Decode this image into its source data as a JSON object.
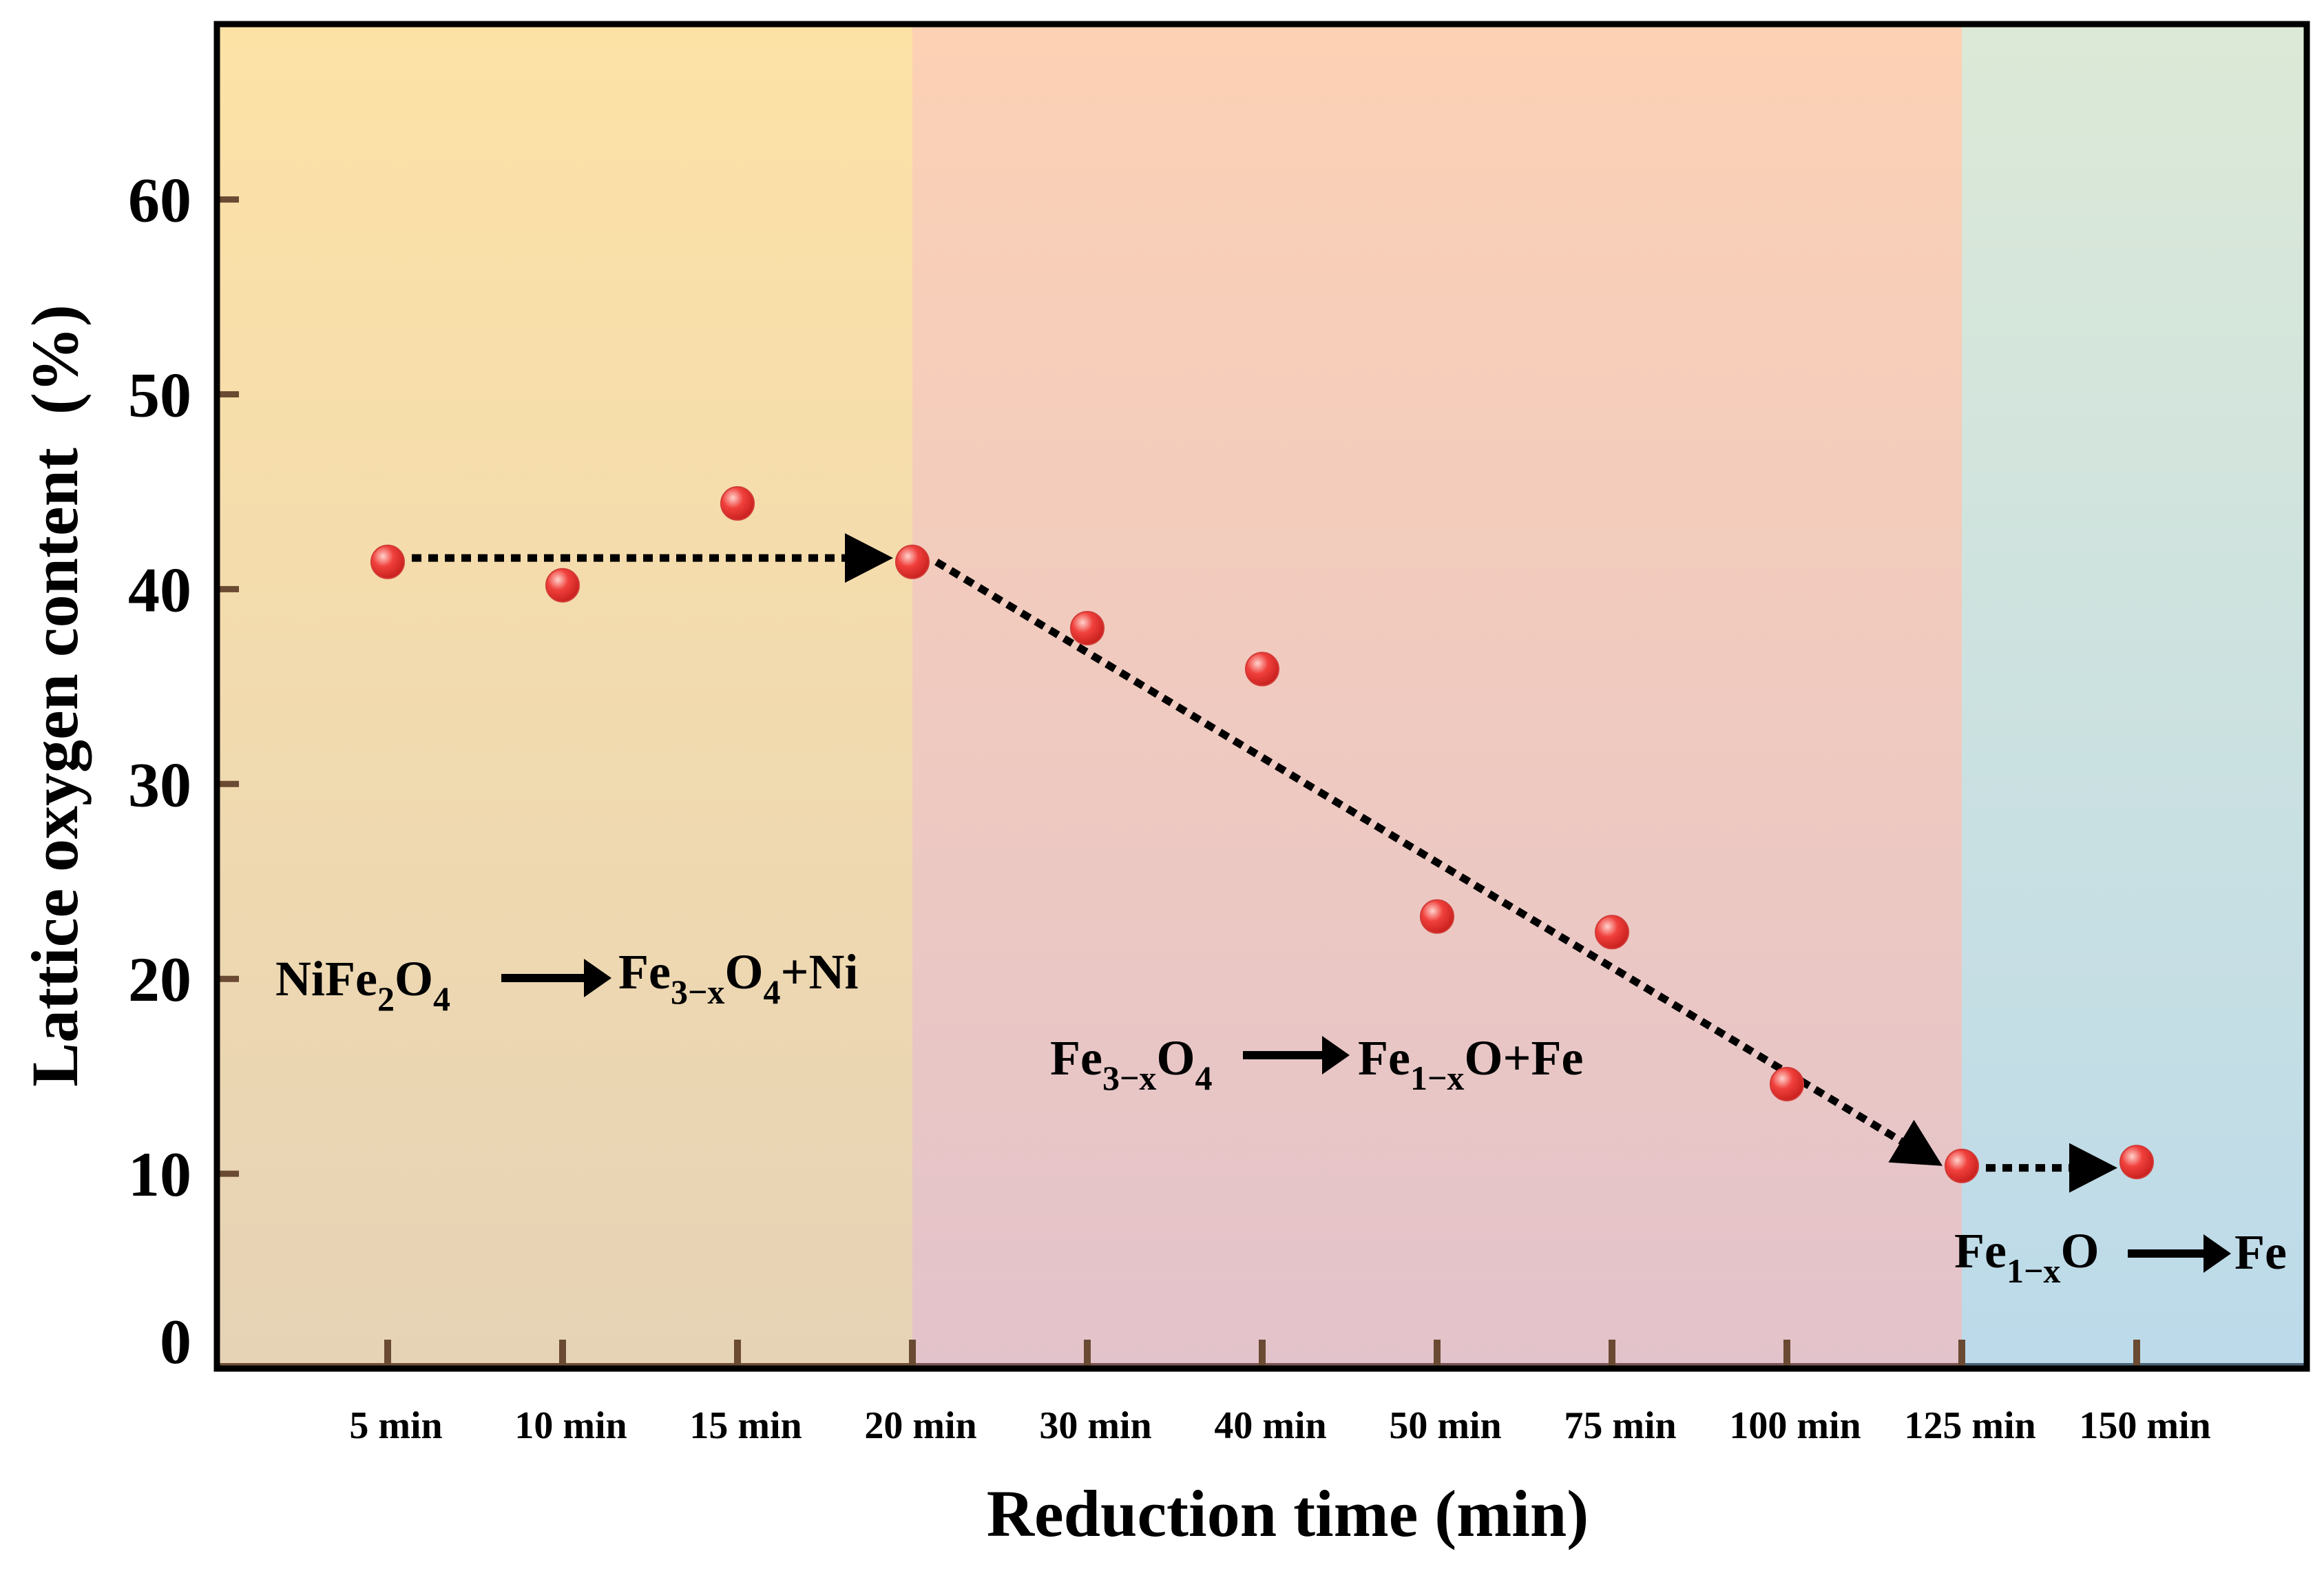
{
  "chart_data": {
    "type": "scatter",
    "title": "",
    "xlabel": "Reduction time (min)",
    "ylabel": "Lattice oxygen content  (%)",
    "ylim": [
      0,
      69
    ],
    "yticks": [
      0,
      10,
      20,
      30,
      40,
      50,
      60
    ],
    "categories": [
      "5 min",
      "10 min",
      "15 min",
      "20 min",
      "30 min",
      "40 min",
      "50 min",
      "75 min",
      "100 min",
      "125 min",
      "150 min"
    ],
    "values": [
      41.4,
      40.2,
      44.4,
      41.4,
      38.0,
      35.9,
      23.2,
      22.4,
      14.6,
      10.4,
      10.6
    ],
    "grid": false,
    "legend": "none",
    "regions": [
      {
        "name": "stage-1",
        "from_category": -1,
        "to_category": 3,
        "top_color": "#fde2a6",
        "bottom_color": "#e6d3b6"
      },
      {
        "name": "stage-2",
        "from_category": 3,
        "to_category": 9,
        "top_color": "#fcd1b4",
        "bottom_color": "#e3c3cb"
      },
      {
        "name": "stage-3",
        "from_category": 9,
        "to_category": 10.97,
        "top_color": "#dce9d6",
        "bottom_color": "#bcdaea"
      }
    ],
    "trend_arrows": [
      {
        "from": [
          0,
          41.6
        ],
        "to": [
          3,
          41.6
        ]
      },
      {
        "from": [
          3,
          41.4
        ],
        "to": [
          9,
          10.4
        ]
      },
      {
        "from": [
          9,
          10.3
        ],
        "to": [
          10,
          10.3
        ]
      }
    ],
    "annotations": [
      {
        "id": "reaction-1",
        "reactant": "NiFe",
        "reactant_sub1": "2",
        "reactant_mid": "O",
        "reactant_sub2": "4",
        "product": "Fe",
        "product_sub1": "3−x",
        "product_mid": "O",
        "product_sub2": "4",
        "product_tail": "+Ni"
      },
      {
        "id": "reaction-2",
        "reactant": "Fe",
        "reactant_sub1": "3−x",
        "reactant_mid": "O",
        "reactant_sub2": "4",
        "product": "Fe",
        "product_sub1": "1−x",
        "product_mid": "O+Fe"
      },
      {
        "id": "reaction-3",
        "reactant": "Fe",
        "reactant_sub1": "1−x",
        "reactant_mid": "O",
        "product": "Fe"
      }
    ],
    "colors": {
      "marker": "#f0403c",
      "marker_highlight": "#ffd2cc",
      "frame": "#000000",
      "tick": "#6a4a32",
      "baseline_1": "#6d4f3a",
      "baseline_2": "#7a5656",
      "baseline_3": "#4c6475"
    }
  }
}
